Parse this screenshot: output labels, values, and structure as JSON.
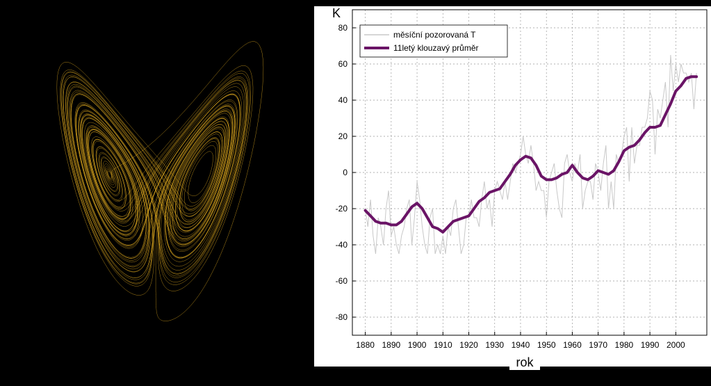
{
  "colors": {
    "attractor": "#e8b020",
    "monthly": "#c8c8c8",
    "smoothed": "#6a1466",
    "grid": "#999999"
  },
  "attractor": {
    "icon": "lorenz-attractor-icon"
  },
  "chart_data": {
    "type": "line",
    "xlabel": "rok",
    "ylabel": "K",
    "xlim": [
      1875,
      2012
    ],
    "ylim": [
      -90,
      90
    ],
    "x_ticks": [
      1880,
      1890,
      1900,
      1910,
      1920,
      1930,
      1940,
      1950,
      1960,
      1970,
      1980,
      1990,
      2000
    ],
    "y_ticks": [
      -80,
      -60,
      -40,
      -20,
      0,
      20,
      40,
      60,
      80
    ],
    "grid": true,
    "legend_position": "top-left",
    "series": [
      {
        "name": "měsíční pozorovaná T",
        "style": "thin-light-gray",
        "x": [
          1880,
          1881,
          1882,
          1883,
          1884,
          1885,
          1886,
          1887,
          1888,
          1889,
          1890,
          1891,
          1892,
          1893,
          1894,
          1895,
          1896,
          1897,
          1898,
          1899,
          1900,
          1901,
          1902,
          1903,
          1904,
          1905,
          1906,
          1907,
          1908,
          1909,
          1910,
          1911,
          1912,
          1913,
          1914,
          1915,
          1916,
          1917,
          1918,
          1919,
          1920,
          1921,
          1922,
          1923,
          1924,
          1925,
          1926,
          1927,
          1928,
          1929,
          1930,
          1931,
          1932,
          1933,
          1934,
          1935,
          1936,
          1937,
          1938,
          1939,
          1940,
          1941,
          1942,
          1943,
          1944,
          1945,
          1946,
          1947,
          1948,
          1949,
          1950,
          1951,
          1952,
          1953,
          1954,
          1955,
          1956,
          1957,
          1958,
          1959,
          1960,
          1961,
          1962,
          1963,
          1964,
          1965,
          1966,
          1967,
          1968,
          1969,
          1970,
          1971,
          1972,
          1973,
          1974,
          1975,
          1976,
          1977,
          1978,
          1979,
          1980,
          1981,
          1982,
          1983,
          1984,
          1985,
          1986,
          1987,
          1988,
          1989,
          1990,
          1991,
          1992,
          1993,
          1994,
          1995,
          1996,
          1997,
          1998,
          1999,
          2000,
          2001,
          2002,
          2003,
          2004,
          2005,
          2006,
          2007,
          2008
        ],
        "values": [
          -20,
          -30,
          -15,
          -35,
          -45,
          -25,
          -30,
          -40,
          -20,
          -10,
          -35,
          -30,
          -40,
          -45,
          -35,
          -30,
          -20,
          -15,
          -40,
          -25,
          -5,
          -15,
          -30,
          -40,
          -45,
          -25,
          -20,
          -45,
          -40,
          -45,
          -35,
          -45,
          -30,
          -35,
          -20,
          -15,
          -30,
          -45,
          -40,
          -25,
          -25,
          -15,
          -25,
          -25,
          -30,
          -15,
          -5,
          -20,
          -15,
          -30,
          -10,
          -5,
          -10,
          -15,
          -5,
          -15,
          -5,
          5,
          0,
          5,
          10,
          20,
          10,
          5,
          15,
          5,
          -10,
          -5,
          -10,
          -10,
          -25,
          -5,
          0,
          5,
          -10,
          -20,
          -25,
          5,
          10,
          0,
          -5,
          5,
          0,
          10,
          -20,
          -10,
          -5,
          -5,
          -15,
          5,
          0,
          -10,
          5,
          15,
          -20,
          -5,
          -20,
          10,
          5,
          10,
          20,
          25,
          -5,
          25,
          5,
          15,
          15,
          25,
          25,
          30,
          45,
          40,
          10,
          35,
          30,
          40,
          50,
          25,
          65,
          45,
          60,
          50,
          60,
          55,
          55,
          50,
          55,
          35,
          55
        ]
      },
      {
        "name": "11letý klouzavý průměr",
        "style": "thick-purple",
        "x": [
          1880,
          1882,
          1884,
          1886,
          1888,
          1890,
          1892,
          1894,
          1896,
          1898,
          1900,
          1902,
          1904,
          1906,
          1908,
          1910,
          1912,
          1914,
          1916,
          1918,
          1920,
          1922,
          1924,
          1926,
          1928,
          1930,
          1932,
          1934,
          1936,
          1938,
          1940,
          1942,
          1944,
          1946,
          1948,
          1950,
          1952,
          1954,
          1956,
          1958,
          1960,
          1962,
          1964,
          1966,
          1968,
          1970,
          1972,
          1974,
          1976,
          1978,
          1980,
          1982,
          1984,
          1986,
          1988,
          1990,
          1992,
          1994,
          1996,
          1998,
          2000,
          2002,
          2004,
          2006,
          2008
        ],
        "values": [
          -21,
          -24,
          -27,
          -28,
          -28,
          -29,
          -29,
          -27,
          -23,
          -19,
          -17,
          -20,
          -25,
          -30,
          -31,
          -33,
          -30,
          -27,
          -26,
          -25,
          -24,
          -20,
          -16,
          -14,
          -11,
          -10,
          -9,
          -5,
          -1,
          4,
          7,
          9,
          8,
          4,
          -2,
          -4,
          -4,
          -3,
          -1,
          0,
          4,
          0,
          -3,
          -4,
          -2,
          1,
          0,
          -1,
          1,
          6,
          12,
          14,
          15,
          18,
          22,
          25,
          25,
          26,
          32,
          38,
          45,
          48,
          52,
          53,
          53
        ]
      }
    ]
  }
}
